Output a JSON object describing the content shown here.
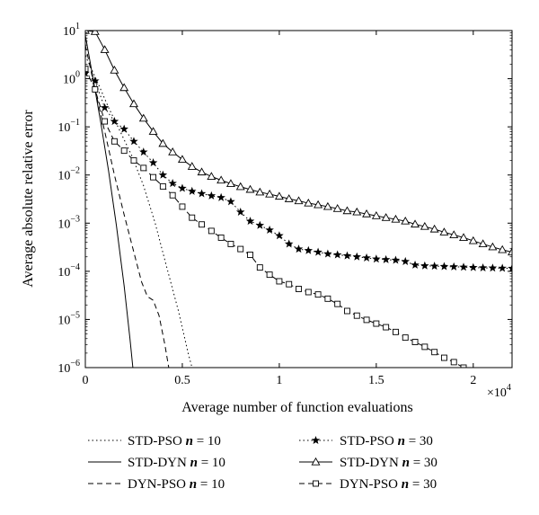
{
  "chart_data": {
    "type": "line",
    "xlabel": "Average number of function evaluations",
    "ylabel": "Average absolute relative error",
    "x_multiplier_label": "×10",
    "x_multiplier_exp": "4",
    "xlim": [
      0,
      22000
    ],
    "ylim": [
      1e-06,
      10
    ],
    "yscale": "log",
    "grid": false,
    "legend_position": "below",
    "x_ticks": [
      {
        "value": 0,
        "label": "0"
      },
      {
        "value": 5000,
        "label": "0.5"
      },
      {
        "value": 10000,
        "label": "1"
      },
      {
        "value": 15000,
        "label": "1.5"
      },
      {
        "value": 20000,
        "label": "2"
      }
    ],
    "y_ticks": [
      {
        "value": 1e-06,
        "base": "10",
        "exp": "−6"
      },
      {
        "value": 1e-05,
        "base": "10",
        "exp": "−5"
      },
      {
        "value": 0.0001,
        "base": "10",
        "exp": "−4"
      },
      {
        "value": 0.001,
        "base": "10",
        "exp": "−3"
      },
      {
        "value": 0.01,
        "base": "10",
        "exp": "−2"
      },
      {
        "value": 0.1,
        "base": "10",
        "exp": "−1"
      },
      {
        "value": 1,
        "base": "10",
        "exp": "0"
      },
      {
        "value": 10,
        "base": "10",
        "exp": "1"
      }
    ],
    "series": [
      {
        "name": "STD-PSO",
        "n_label": "n",
        "n_value": "= 10",
        "dash": "1.5,3",
        "marker": "none",
        "points": [
          [
            0,
            3.0
          ],
          [
            600,
            0.9
          ],
          [
            1200,
            0.25
          ],
          [
            1800,
            0.08
          ],
          [
            2400,
            0.025
          ],
          [
            3000,
            0.006
          ],
          [
            3600,
            0.001
          ],
          [
            4200,
            0.00012
          ],
          [
            4800,
            1.5e-05
          ],
          [
            5300,
            2e-06
          ],
          [
            5500,
            1e-06
          ]
        ]
      },
      {
        "name": "STD-DYN",
        "n_label": "n",
        "n_value": "= 10",
        "dash": "",
        "marker": "none",
        "points": [
          [
            0,
            8.0
          ],
          [
            400,
            1.0
          ],
          [
            800,
            0.12
          ],
          [
            1200,
            0.012
          ],
          [
            1600,
            0.0009
          ],
          [
            2000,
            5e-05
          ],
          [
            2300,
            4e-06
          ],
          [
            2450,
            1e-06
          ]
        ]
      },
      {
        "name": "DYN-PSO",
        "n_label": "n",
        "n_value": "= 10",
        "dash": "6,4",
        "marker": "none",
        "points": [
          [
            0,
            5.0
          ],
          [
            500,
            0.6
          ],
          [
            1000,
            0.08
          ],
          [
            1500,
            0.01
          ],
          [
            2000,
            0.0015
          ],
          [
            2500,
            0.00025
          ],
          [
            2900,
            6e-05
          ],
          [
            3200,
            3e-05
          ],
          [
            3500,
            2.5e-05
          ],
          [
            3800,
            1.2e-05
          ],
          [
            4100,
            3e-06
          ],
          [
            4300,
            1e-06
          ]
        ]
      },
      {
        "name": "STD-PSO",
        "n_label": "n",
        "n_value": "= 30",
        "dash": "1.5,3",
        "marker": "star",
        "points": [
          [
            0,
            1.3
          ],
          [
            500,
            0.9
          ],
          [
            1000,
            0.25
          ],
          [
            1500,
            0.13
          ],
          [
            2000,
            0.09
          ],
          [
            2500,
            0.05
          ],
          [
            3000,
            0.03
          ],
          [
            3500,
            0.018
          ],
          [
            4000,
            0.01
          ],
          [
            4500,
            0.0067
          ],
          [
            5000,
            0.0053
          ],
          [
            5500,
            0.0046
          ],
          [
            6000,
            0.0041
          ],
          [
            6500,
            0.0037
          ],
          [
            7000,
            0.0034
          ],
          [
            7500,
            0.0028
          ],
          [
            8000,
            0.0017
          ],
          [
            8500,
            0.0011
          ],
          [
            9000,
            0.0009
          ],
          [
            9500,
            0.00072
          ],
          [
            10000,
            0.00055
          ],
          [
            10500,
            0.00037
          ],
          [
            11000,
            0.00029
          ],
          [
            11500,
            0.00027
          ],
          [
            12000,
            0.00025
          ],
          [
            12500,
            0.00023
          ],
          [
            13000,
            0.00022
          ],
          [
            13500,
            0.00021
          ],
          [
            14000,
            0.0002
          ],
          [
            14500,
            0.00019
          ],
          [
            15000,
            0.00018
          ],
          [
            15500,
            0.000175
          ],
          [
            16000,
            0.00017
          ],
          [
            16500,
            0.00016
          ],
          [
            17000,
            0.000135
          ],
          [
            17500,
            0.00013
          ],
          [
            18000,
            0.000128
          ],
          [
            18500,
            0.000126
          ],
          [
            19000,
            0.000124
          ],
          [
            19500,
            0.000122
          ],
          [
            20000,
            0.00012
          ],
          [
            20500,
            0.000118
          ],
          [
            21000,
            0.000117
          ],
          [
            21500,
            0.000116
          ],
          [
            22000,
            0.000115
          ]
        ]
      },
      {
        "name": "STD-DYN",
        "n_label": "n",
        "n_value": "= 30",
        "dash": "",
        "marker": "triangle",
        "points": [
          [
            0,
            10
          ],
          [
            500,
            9.5
          ],
          [
            1000,
            4.0
          ],
          [
            1500,
            1.5
          ],
          [
            2000,
            0.65
          ],
          [
            2500,
            0.3
          ],
          [
            3000,
            0.15
          ],
          [
            3500,
            0.08
          ],
          [
            4000,
            0.045
          ],
          [
            4500,
            0.03
          ],
          [
            5000,
            0.021
          ],
          [
            5500,
            0.015
          ],
          [
            6000,
            0.0115
          ],
          [
            6500,
            0.0093
          ],
          [
            7000,
            0.0078
          ],
          [
            7500,
            0.0066
          ],
          [
            8000,
            0.0057
          ],
          [
            8500,
            0.005
          ],
          [
            9000,
            0.0044
          ],
          [
            9500,
            0.004
          ],
          [
            10000,
            0.0036
          ],
          [
            10500,
            0.0032
          ],
          [
            11000,
            0.0029
          ],
          [
            11500,
            0.0026
          ],
          [
            12000,
            0.0024
          ],
          [
            12500,
            0.0022
          ],
          [
            13000,
            0.002
          ],
          [
            13500,
            0.0018
          ],
          [
            14000,
            0.0017
          ],
          [
            14500,
            0.00155
          ],
          [
            15000,
            0.00142
          ],
          [
            15500,
            0.0013
          ],
          [
            16000,
            0.0012
          ],
          [
            16500,
            0.0011
          ],
          [
            17000,
            0.00095
          ],
          [
            17500,
            0.00085
          ],
          [
            18000,
            0.00075
          ],
          [
            18500,
            0.00065
          ],
          [
            19000,
            0.00057
          ],
          [
            19500,
            0.0005
          ],
          [
            20000,
            0.00043
          ],
          [
            20500,
            0.00037
          ],
          [
            21000,
            0.00032
          ],
          [
            21500,
            0.00028
          ],
          [
            22000,
            0.00025
          ]
        ]
      },
      {
        "name": "DYN-PSO",
        "n_label": "n",
        "n_value": "= 30",
        "dash": "6,4",
        "marker": "square",
        "points": [
          [
            0,
            1.6
          ],
          [
            500,
            0.6
          ],
          [
            1000,
            0.13
          ],
          [
            1500,
            0.05
          ],
          [
            2000,
            0.032
          ],
          [
            2500,
            0.02
          ],
          [
            3000,
            0.014
          ],
          [
            3500,
            0.009
          ],
          [
            4000,
            0.0058
          ],
          [
            4500,
            0.0038
          ],
          [
            5000,
            0.0022
          ],
          [
            5500,
            0.0013
          ],
          [
            6000,
            0.00094
          ],
          [
            6500,
            0.00069
          ],
          [
            7000,
            0.0005
          ],
          [
            7500,
            0.00037
          ],
          [
            8000,
            0.00029
          ],
          [
            8500,
            0.00022
          ],
          [
            9000,
            0.00012
          ],
          [
            9500,
            8.5e-05
          ],
          [
            10000,
            6.2e-05
          ],
          [
            10500,
            5.4e-05
          ],
          [
            11000,
            4.3e-05
          ],
          [
            11500,
            3.7e-05
          ],
          [
            12000,
            3.3e-05
          ],
          [
            12500,
            2.7e-05
          ],
          [
            13000,
            2.1e-05
          ],
          [
            13500,
            1.5e-05
          ],
          [
            14000,
            1.2e-05
          ],
          [
            14500,
            9.8e-06
          ],
          [
            15000,
            8.2e-06
          ],
          [
            15500,
            6.9e-06
          ],
          [
            16000,
            5.5e-06
          ],
          [
            16500,
            4.2e-06
          ],
          [
            17000,
            3.4e-06
          ],
          [
            17500,
            2.7e-06
          ],
          [
            18000,
            2.1e-06
          ],
          [
            18500,
            1.6e-06
          ],
          [
            19000,
            1.3e-06
          ],
          [
            19500,
            1e-06
          ],
          [
            20000,
            8.8e-07
          ],
          [
            20500,
            7.8e-07
          ]
        ]
      }
    ]
  }
}
